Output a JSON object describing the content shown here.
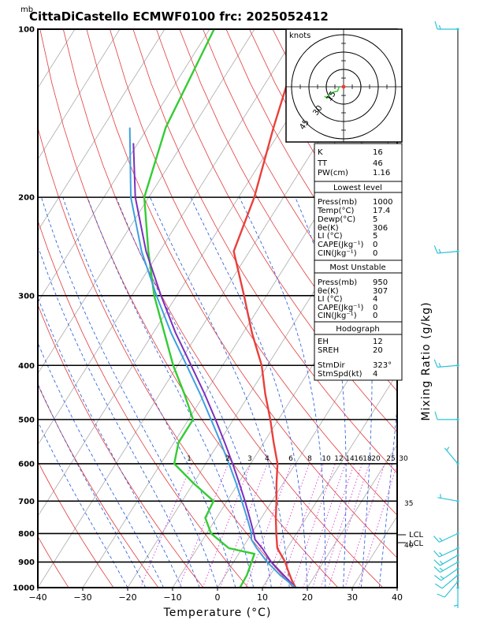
{
  "header": {
    "unit": "mb",
    "title": "CittaDiCastello ECMWF0100 frc: 2025052412"
  },
  "axes": {
    "xlabel": "Temperature (°C)",
    "ylabel": "Mixing Ratio (g/kg)",
    "x_ticks": [
      "−40",
      "−30",
      "−20",
      "−10",
      "0",
      "10",
      "20",
      "30",
      "40"
    ],
    "p_ticks": [
      "100",
      "200",
      "300",
      "400",
      "500",
      "600",
      "700",
      "800",
      "900",
      "1000"
    ]
  },
  "mixing_ratio_labels": [
    "1",
    "2",
    "3",
    "4",
    "6",
    "8",
    "10",
    "12",
    "14",
    "16",
    "18",
    "20",
    "25",
    "30"
  ],
  "theta_labels": [
    "35",
    "40"
  ],
  "lcl_labels": [
    "LCL",
    "LCL"
  ],
  "hodograph": {
    "unit_label": "knots",
    "ring_labels": [
      "15",
      "30",
      "45"
    ]
  },
  "indices": {
    "top": [
      {
        "label": "K",
        "value": "16"
      },
      {
        "label": "TT",
        "value": "46"
      },
      {
        "label": "PW(cm)",
        "value": "1.16"
      }
    ],
    "lowest_level": {
      "title": "Lowest level",
      "rows": [
        {
          "label": "Press(mb)",
          "value": "1000"
        },
        {
          "label": "Temp(°C)",
          "value": "17.4"
        },
        {
          "label": "Dewp(°C)",
          "value": "5"
        },
        {
          "label": "θe(K)",
          "value": "306"
        },
        {
          "label": "LI  (°C)",
          "value": "5"
        },
        {
          "label": "CAPE(Jkg⁻¹)",
          "value": "0"
        },
        {
          "label": "CIN(Jkg⁻¹)",
          "value": "0"
        }
      ]
    },
    "most_unstable": {
      "title": "Most Unstable",
      "rows": [
        {
          "label": "Press(mb)",
          "value": "950"
        },
        {
          "label": "θe(K)",
          "value": "307"
        },
        {
          "label": "LI  (°C)",
          "value": "4"
        },
        {
          "label": "CAPE(Jkg⁻¹)",
          "value": "0"
        },
        {
          "label": "CIN(Jkg⁻¹)",
          "value": "0"
        }
      ]
    },
    "hodograph_box": {
      "title": "Hodograph",
      "rows": [
        {
          "label": "EH",
          "value": "12"
        },
        {
          "label": "SREH",
          "value": "20"
        },
        {
          "label": "StmDir",
          "value": "323°"
        },
        {
          "label": "StmSpd(kt)",
          "value": "4"
        }
      ]
    }
  },
  "colors": {
    "temperature": "#e8403c",
    "dewpoint": "#33cc33",
    "parcel": "#7b2fbe",
    "parcel_alt": "#3fa0e0",
    "isotherm": "#aaaaaa",
    "dry_adiabat": "#e23b3b",
    "moist_adiabat": "#2255dd",
    "mixing_ratio": "#d63fd6",
    "wind_barb": "#2ec4d6"
  },
  "chart_data": {
    "type": "line",
    "title": "CittaDiCastello ECMWF0100 frc: 2025052412",
    "xlabel": "Temperature (°C)",
    "ylabel": "Mixing Ratio (g/kg)",
    "xlim": [
      -40,
      40
    ],
    "plim": [
      1000,
      100
    ],
    "y_scale": "log-pressure",
    "skew": "skew-T",
    "series": [
      {
        "key": "temperature",
        "points": [
          [
            1000,
            17.4
          ],
          [
            970,
            15.5
          ],
          [
            930,
            13.2
          ],
          [
            900,
            11.5
          ],
          [
            850,
            7.8
          ],
          [
            800,
            5.5
          ],
          [
            750,
            3.2
          ],
          [
            700,
            1.0
          ],
          [
            650,
            -1.5
          ],
          [
            600,
            -4.0
          ],
          [
            550,
            -7.8
          ],
          [
            500,
            -11.8
          ],
          [
            450,
            -16.5
          ],
          [
            400,
            -21.3
          ],
          [
            350,
            -28.0
          ],
          [
            300,
            -35.0
          ],
          [
            250,
            -43.5
          ],
          [
            200,
            -46.5
          ],
          [
            150,
            -52.0
          ],
          [
            100,
            -59.0
          ]
        ]
      },
      {
        "key": "dewpoint",
        "points": [
          [
            1000,
            5.0
          ],
          [
            950,
            4.8
          ],
          [
            900,
            4.0
          ],
          [
            870,
            3.5
          ],
          [
            850,
            -3.0
          ],
          [
            800,
            -9.0
          ],
          [
            750,
            -12.5
          ],
          [
            700,
            -13.0
          ],
          [
            650,
            -20.0
          ],
          [
            600,
            -27.0
          ],
          [
            550,
            -29.0
          ],
          [
            500,
            -29.0
          ],
          [
            450,
            -34.5
          ],
          [
            400,
            -41.0
          ],
          [
            350,
            -47.5
          ],
          [
            300,
            -55.0
          ],
          [
            250,
            -62.5
          ],
          [
            200,
            -71.0
          ],
          [
            150,
            -76.0
          ],
          [
            100,
            -79.0
          ]
        ]
      },
      {
        "key": "parcel",
        "points": [
          [
            1000,
            17.4
          ],
          [
            950,
            13.0
          ],
          [
            900,
            8.4
          ],
          [
            850,
            4.4
          ],
          [
            820,
            1.6
          ],
          [
            800,
            0.5
          ],
          [
            750,
            -2.6
          ],
          [
            700,
            -6.0
          ],
          [
            650,
            -9.8
          ],
          [
            600,
            -14.0
          ],
          [
            550,
            -18.7
          ],
          [
            500,
            -24.0
          ],
          [
            450,
            -30.0
          ],
          [
            400,
            -37.0
          ],
          [
            350,
            -45.0
          ],
          [
            300,
            -53.5
          ],
          [
            250,
            -63.0
          ],
          [
            200,
            -73.0
          ],
          [
            160,
            -81.0
          ]
        ]
      },
      {
        "key": "parcel_alt",
        "points": [
          [
            1000,
            17.4
          ],
          [
            950,
            12.2
          ],
          [
            900,
            7.5
          ],
          [
            850,
            3.2
          ],
          [
            820,
            0.8
          ],
          [
            800,
            0.0
          ],
          [
            750,
            -3.2
          ],
          [
            700,
            -6.7
          ],
          [
            650,
            -10.5
          ],
          [
            600,
            -14.8
          ],
          [
            550,
            -19.6
          ],
          [
            500,
            -25.0
          ],
          [
            450,
            -31.0
          ],
          [
            400,
            -38.0
          ],
          [
            350,
            -46.0
          ],
          [
            300,
            -54.5
          ],
          [
            250,
            -64.0
          ],
          [
            200,
            -74.0
          ],
          [
            150,
            -84.0
          ]
        ]
      }
    ],
    "winds": [
      {
        "p": 1000,
        "dir": 180,
        "kt": 5
      },
      {
        "p": 975,
        "dir": 220,
        "kt": 10
      },
      {
        "p": 950,
        "dir": 230,
        "kt": 10
      },
      {
        "p": 925,
        "dir": 235,
        "kt": 15
      },
      {
        "p": 900,
        "dir": 240,
        "kt": 15
      },
      {
        "p": 875,
        "dir": 240,
        "kt": 15
      },
      {
        "p": 850,
        "dir": 245,
        "kt": 15
      },
      {
        "p": 800,
        "dir": 245,
        "kt": 15
      },
      {
        "p": 700,
        "dir": 280,
        "kt": 5
      },
      {
        "p": 600,
        "dir": 320,
        "kt": 5
      },
      {
        "p": 500,
        "dir": 270,
        "kt": 10
      },
      {
        "p": 400,
        "dir": 265,
        "kt": 15
      },
      {
        "p": 250,
        "dir": 265,
        "kt": 15
      },
      {
        "p": 100,
        "dir": 270,
        "kt": 15
      }
    ],
    "hodograph_points": [
      [
        -2.5,
        0.0
      ],
      [
        -3.5,
        -2.5
      ],
      [
        -7.5,
        -3.5
      ],
      [
        -9.5,
        -6.5
      ],
      [
        -11.0,
        -5.5
      ]
    ]
  }
}
